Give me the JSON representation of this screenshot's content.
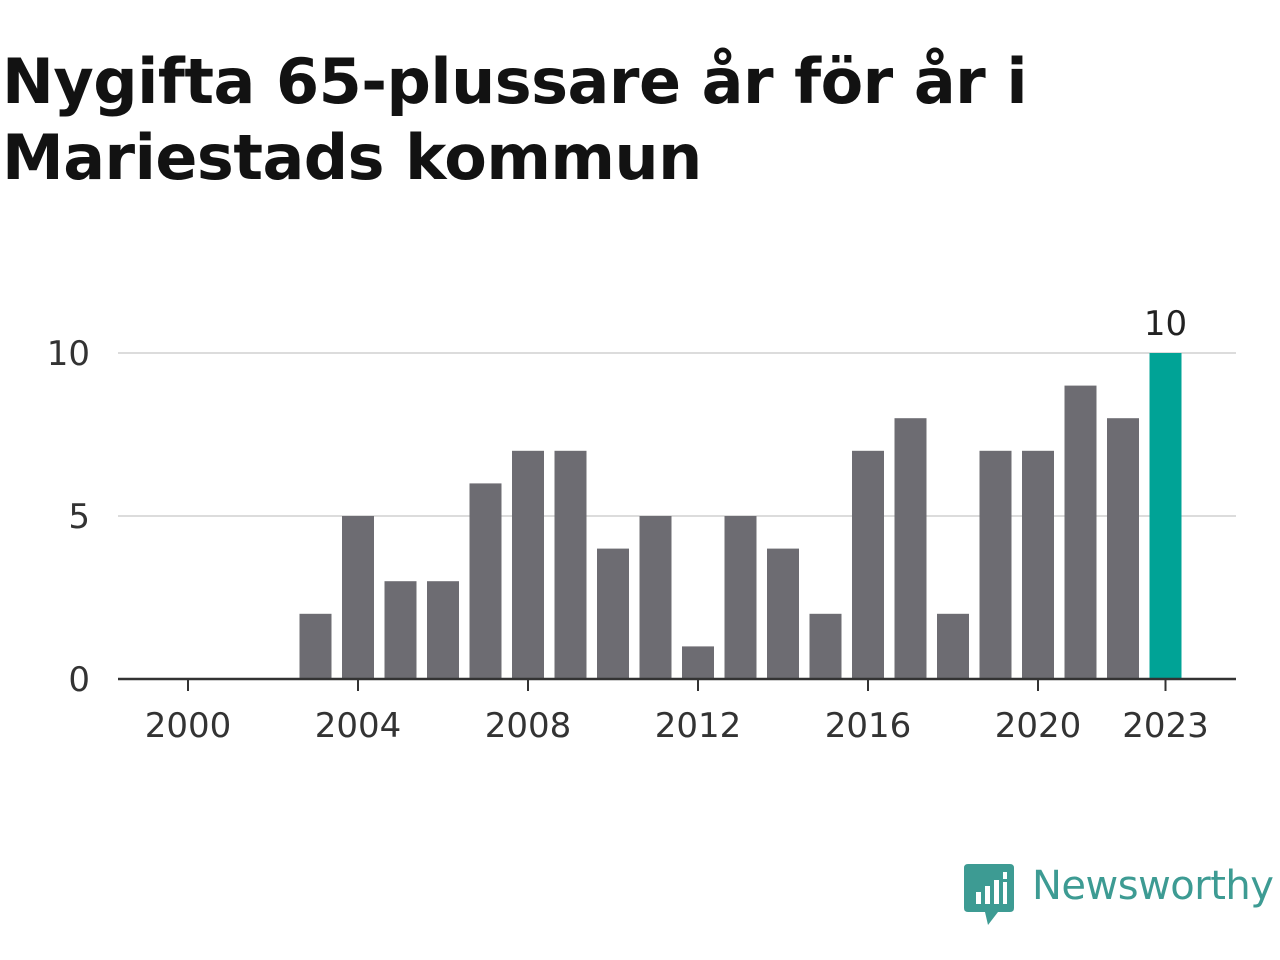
{
  "title": "Nygifta 65-plussare år för år i Mariestads kommun",
  "brand": {
    "name": "Newsworthy",
    "logo_icon": "chart-speech-bubble-icon",
    "color": "#3d9b93"
  },
  "colors": {
    "bar": "#6d6c72",
    "highlight": "#00a396",
    "grid": "#dcdcdc",
    "axis": "#333333",
    "text": "#333333"
  },
  "chart_data": {
    "type": "bar",
    "title": "Nygifta 65-plussare år för år i Mariestads kommun",
    "xlabel": "",
    "ylabel": "",
    "categories": [
      "2000",
      "2001",
      "2002",
      "2003",
      "2004",
      "2005",
      "2006",
      "2007",
      "2008",
      "2009",
      "2010",
      "2011",
      "2012",
      "2013",
      "2014",
      "2015",
      "2016",
      "2017",
      "2018",
      "2019",
      "2020",
      "2021",
      "2022",
      "2023"
    ],
    "values": [
      0,
      0,
      0,
      2,
      5,
      3,
      3,
      6,
      7,
      7,
      4,
      5,
      1,
      5,
      4,
      2,
      7,
      8,
      2,
      7,
      7,
      9,
      8,
      10
    ],
    "highlight_index": 23,
    "data_labels": [
      {
        "category": "2023",
        "text": "10"
      }
    ],
    "ylim": [
      0,
      10
    ],
    "yticks": [
      "0",
      "5",
      "10"
    ],
    "xticks": [
      "2000",
      "2004",
      "2008",
      "2012",
      "2016",
      "2020",
      "2023"
    ],
    "grid": true,
    "legend": "none"
  }
}
